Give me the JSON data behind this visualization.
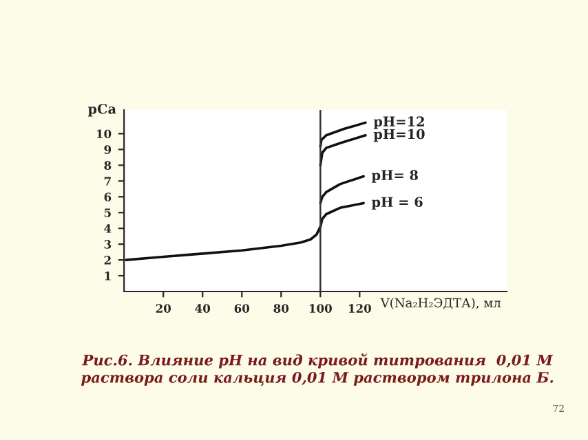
{
  "chart_data": {
    "type": "line",
    "xlabel": "V(Na₂H₂ЭДТА), мл",
    "ylabel": "pCa",
    "xlim": [
      0,
      195
    ],
    "ylim": [
      0,
      11.5
    ],
    "xticks": [
      20,
      40,
      60,
      80,
      100,
      120
    ],
    "yticks": [
      1,
      2,
      3,
      4,
      5,
      6,
      7,
      8,
      9,
      10
    ],
    "ref_lines": [
      {
        "axis": "x",
        "value": 100,
        "color": "#333333"
      }
    ],
    "series": [
      {
        "name": "pH=12",
        "color": "#111111",
        "x": [
          100,
          100.5,
          103,
          112,
          123
        ],
        "values": [
          9.2,
          9.6,
          9.9,
          10.3,
          10.7
        ]
      },
      {
        "name": "pH=10",
        "color": "#111111",
        "x": [
          100,
          101,
          103,
          110,
          123
        ],
        "values": [
          8.0,
          8.8,
          9.1,
          9.4,
          9.9
        ]
      },
      {
        "name": "pH= 8",
        "color": "#111111",
        "x": [
          100,
          101,
          103,
          110,
          122
        ],
        "values": [
          5.6,
          6.0,
          6.3,
          6.8,
          7.3
        ]
      },
      {
        "name": "pH = 6",
        "color": "#111111",
        "x": [
          1,
          20,
          40,
          60,
          80,
          90,
          95,
          98,
          100,
          101,
          103,
          110,
          122
        ],
        "values": [
          2.0,
          2.2,
          2.4,
          2.6,
          2.9,
          3.1,
          3.3,
          3.6,
          4.1,
          4.6,
          4.9,
          5.3,
          5.6
        ]
      }
    ],
    "annotations": [
      "Рис.6. Влияние pH на вид кривой титрования  0,01 М\nраствора соли кальция 0,01 М раствором трилона Б.",
      "72"
    ]
  }
}
